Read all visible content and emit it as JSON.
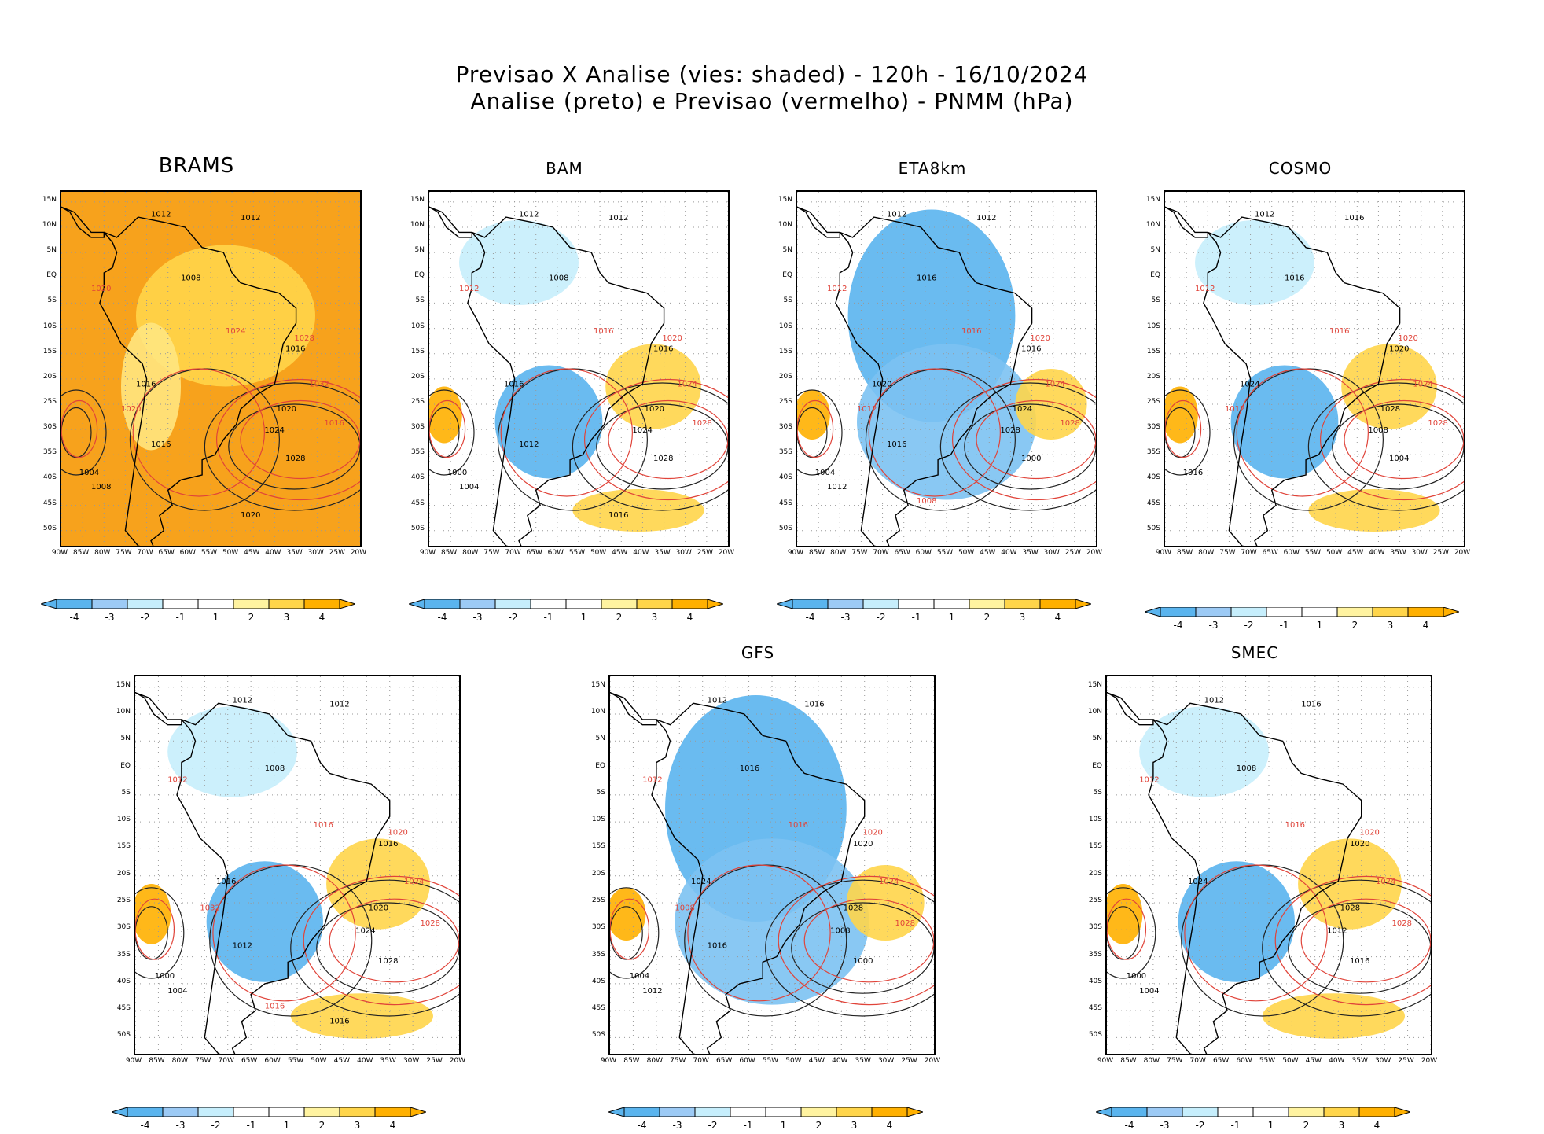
{
  "title": {
    "line1": "Previsao X Analise (vies: shaded) - 120h - 16/10/2024",
    "line2": "Analise (preto) e Previsao (vermelho) - PNMM (hPa)"
  },
  "axes": {
    "lat_labels": [
      "15N",
      "10N",
      "5N",
      "EQ",
      "5S",
      "10S",
      "15S",
      "20S",
      "25S",
      "30S",
      "35S",
      "40S",
      "45S",
      "50S"
    ],
    "lon_labels": [
      "90W",
      "85W",
      "80W",
      "75W",
      "70W",
      "65W",
      "60W",
      "55W",
      "50W",
      "45W",
      "40W",
      "35W",
      "30W",
      "25W",
      "20W"
    ]
  },
  "colorbar": {
    "labels": [
      "-4",
      "-3",
      "-2",
      "-1",
      "1",
      "2",
      "3",
      "4"
    ],
    "colors": [
      "#5ab4ee",
      "#9ccaf5",
      "#c6eefc",
      "#ffffff",
      "#ffffff",
      "#fff3a0",
      "#ffd54a",
      "#ffb000"
    ]
  },
  "panels": [
    {
      "id": "brams",
      "title": "BRAMS",
      "bias": "positive",
      "red_labels": [
        "1020",
        "1024",
        "1028",
        "1032",
        "1016",
        "1020"
      ],
      "black_labels": [
        "1012",
        "1012",
        "1008",
        "1016",
        "1016",
        "1020",
        "1024",
        "1028",
        "1004",
        "1008",
        "1016",
        "1020"
      ]
    },
    {
      "id": "bam",
      "title": "BAM",
      "bias": "mixed",
      "red_labels": [
        "1012",
        "1016",
        "1020",
        "1024",
        "1028"
      ],
      "black_labels": [
        "1012",
        "1012",
        "1008",
        "1016",
        "1016",
        "1020",
        "1024",
        "1028",
        "1000",
        "1004",
        "1012",
        "1016"
      ]
    },
    {
      "id": "eta8km",
      "title": "ETA8km",
      "bias": "negative",
      "red_labels": [
        "1012",
        "1016",
        "1020",
        "1024",
        "1028",
        "1012",
        "1008"
      ],
      "black_labels": [
        "1012",
        "1012",
        "1016",
        "1016",
        "1020",
        "1024",
        "1028",
        "1000",
        "1004",
        "1012",
        "1016"
      ]
    },
    {
      "id": "cosmo",
      "title": "COSMO",
      "bias": "mixed",
      "red_labels": [
        "1012",
        "1016",
        "1020",
        "1024",
        "1028",
        "1012"
      ],
      "black_labels": [
        "1012",
        "1016",
        "1016",
        "1020",
        "1024",
        "1028",
        "1008",
        "1004",
        "1016"
      ]
    },
    {
      "id": "wrf",
      "title": "",
      "bias": "mixed",
      "red_labels": [
        "1012",
        "1016",
        "1020",
        "1024",
        "1028",
        "1032",
        "1016"
      ],
      "black_labels": [
        "1012",
        "1012",
        "1008",
        "1016",
        "1016",
        "1020",
        "1024",
        "1028",
        "1000",
        "1004",
        "1012",
        "1016"
      ]
    },
    {
      "id": "gfs",
      "title": "GFS",
      "bias": "negative",
      "red_labels": [
        "1012",
        "1016",
        "1020",
        "1024",
        "1028",
        "1008"
      ],
      "black_labels": [
        "1012",
        "1016",
        "1016",
        "1020",
        "1024",
        "1028",
        "1008",
        "1000",
        "1004",
        "1012",
        "1016"
      ]
    },
    {
      "id": "smec",
      "title": "SMEC",
      "bias": "mixed",
      "red_labels": [
        "1012",
        "1016",
        "1020",
        "1024",
        "1028"
      ],
      "black_labels": [
        "1012",
        "1016",
        "1008",
        "1020",
        "1024",
        "1028",
        "1012",
        "1016",
        "1000",
        "1004"
      ]
    }
  ]
}
